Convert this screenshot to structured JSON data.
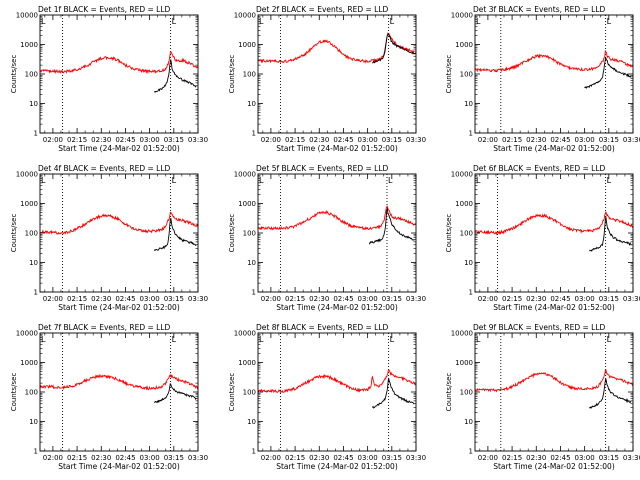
{
  "figure": {
    "x_ticks": [
      "02:00",
      "02:15",
      "02:30",
      "02:45",
      "03:00",
      "03:15",
      "03:30"
    ],
    "y_ticks": [
      "1",
      "10",
      "100",
      "1000",
      "10000"
    ],
    "xlabel": "Start Time (24-Mar-02 01:52:00)",
    "ylabel": "Counts/sec",
    "marker_letter": "L"
  },
  "colors": {
    "events": "#000000",
    "lld": "#ff0000",
    "axes": "#000000"
  },
  "chart_data": [
    {
      "type": "line",
      "title": "Det 1f BLACK = Events, RED = LLD",
      "xlabel": "Start Time (24-Mar-02 01:52:00)",
      "ylabel": "Counts/sec",
      "y_scale": "log",
      "ylim": [
        1,
        10000
      ],
      "xlim": [
        "01:52",
        "03:30"
      ],
      "dotted_time_markers": [
        "02:06",
        "03:13"
      ],
      "series": [
        {
          "x": [
            "01:52",
            "02:00",
            "02:05",
            "02:10",
            "02:15",
            "02:20",
            "02:25",
            "02:30",
            "02:35",
            "02:40",
            "02:45",
            "02:50",
            "02:55",
            "03:00",
            "03:05",
            "03:08",
            "03:10",
            "03:12",
            "03:13",
            "03:14",
            "03:16",
            "03:18",
            "03:21",
            "03:24",
            "03:27",
            "03:30"
          ],
          "y": [
            130,
            125,
            120,
            125,
            140,
            180,
            250,
            340,
            370,
            300,
            200,
            150,
            130,
            120,
            125,
            130,
            150,
            250,
            620,
            430,
            300,
            290,
            280,
            240,
            200,
            160
          ]
        },
        {
          "x": [
            "03:03",
            "03:05",
            "03:07",
            "03:09",
            "03:11",
            "03:12",
            "03:13",
            "03:14",
            "03:16",
            "03:18",
            "03:21",
            "03:24",
            "03:27",
            "03:29"
          ],
          "y": [
            25,
            27,
            30,
            36,
            55,
            110,
            350,
            140,
            95,
            75,
            60,
            52,
            45,
            38
          ]
        }
      ]
    },
    {
      "type": "line",
      "title": "Det 2f BLACK = Events, RED = LLD",
      "xlabel": "Start Time (24-Mar-02 01:52:00)",
      "ylabel": "Counts/sec",
      "y_scale": "log",
      "ylim": [
        1,
        10000
      ],
      "xlim": [
        "01:52",
        "03:30"
      ],
      "dotted_time_markers": [
        "02:06",
        "03:13"
      ],
      "series": [
        {
          "x": [
            "01:52",
            "02:00",
            "02:05",
            "02:10",
            "02:15",
            "02:20",
            "02:25",
            "02:30",
            "02:35",
            "02:40",
            "02:45",
            "02:50",
            "02:55",
            "03:00",
            "03:05",
            "03:08",
            "03:10",
            "03:11",
            "03:12",
            "03:13",
            "03:15",
            "03:18",
            "03:21",
            "03:24",
            "03:27",
            "03:30"
          ],
          "y": [
            280,
            280,
            270,
            275,
            320,
            420,
            700,
            1200,
            1300,
            800,
            450,
            320,
            280,
            270,
            290,
            320,
            450,
            900,
            2000,
            2500,
            1500,
            1000,
            800,
            700,
            600,
            480
          ]
        },
        {
          "x": [
            "03:03",
            "03:05",
            "03:07",
            "03:09",
            "03:10",
            "03:11",
            "03:12",
            "03:13",
            "03:15",
            "03:18",
            "03:21",
            "03:24",
            "03:27",
            "03:29"
          ],
          "y": [
            250,
            260,
            280,
            330,
            400,
            700,
            1800,
            2200,
            1200,
            900,
            750,
            650,
            550,
            500
          ]
        }
      ]
    },
    {
      "type": "line",
      "title": "Det 3f BLACK = Events, RED = LLD",
      "xlabel": "Start Time (24-Mar-02 01:52:00)",
      "ylabel": "Counts/sec",
      "y_scale": "log",
      "ylim": [
        1,
        10000
      ],
      "xlim": [
        "01:52",
        "03:30"
      ],
      "dotted_time_markers": [
        "02:08",
        "03:13"
      ],
      "series": [
        {
          "x": [
            "01:52",
            "02:00",
            "02:05",
            "02:10",
            "02:15",
            "02:20",
            "02:25",
            "02:30",
            "02:35",
            "02:40",
            "02:45",
            "02:50",
            "02:55",
            "03:00",
            "03:05",
            "03:08",
            "03:10",
            "03:12",
            "03:13",
            "03:14",
            "03:16",
            "03:18",
            "03:21",
            "03:24",
            "03:27",
            "03:30"
          ],
          "y": [
            140,
            135,
            130,
            140,
            160,
            210,
            300,
            400,
            420,
            320,
            210,
            160,
            145,
            140,
            150,
            170,
            220,
            320,
            600,
            420,
            320,
            300,
            280,
            250,
            200,
            170
          ]
        },
        {
          "x": [
            "03:00",
            "03:02",
            "03:04",
            "03:06",
            "03:08",
            "03:10",
            "03:11",
            "03:12",
            "03:13",
            "03:15",
            "03:18",
            "03:21",
            "03:24",
            "03:27",
            "03:29"
          ],
          "y": [
            35,
            37,
            40,
            45,
            50,
            60,
            75,
            150,
            380,
            200,
            150,
            120,
            100,
            90,
            80
          ]
        }
      ]
    },
    {
      "type": "line",
      "title": "Det 4f BLACK = Events, RED = LLD",
      "xlabel": "Start Time (24-Mar-02 01:52:00)",
      "ylabel": "Counts/sec",
      "y_scale": "log",
      "ylim": [
        1,
        10000
      ],
      "xlim": [
        "01:52",
        "03:30"
      ],
      "dotted_time_markers": [
        "02:06",
        "03:13"
      ],
      "series": [
        {
          "x": [
            "01:52",
            "02:00",
            "02:05",
            "02:10",
            "02:15",
            "02:20",
            "02:25",
            "02:30",
            "02:35",
            "02:40",
            "02:45",
            "02:50",
            "02:55",
            "03:00",
            "03:05",
            "03:08",
            "03:10",
            "03:12",
            "03:13",
            "03:14",
            "03:16",
            "03:18",
            "03:21",
            "03:24",
            "03:27",
            "03:30"
          ],
          "y": [
            110,
            105,
            100,
            110,
            140,
            200,
            300,
            380,
            390,
            300,
            200,
            140,
            120,
            115,
            120,
            135,
            170,
            300,
            520,
            400,
            300,
            280,
            260,
            230,
            200,
            170
          ]
        },
        {
          "x": [
            "03:03",
            "03:05",
            "03:07",
            "03:09",
            "03:11",
            "03:12",
            "03:13",
            "03:14",
            "03:16",
            "03:18",
            "03:21",
            "03:24",
            "03:27",
            "03:29"
          ],
          "y": [
            25,
            27,
            30,
            33,
            40,
            80,
            380,
            160,
            90,
            70,
            55,
            50,
            45,
            40
          ]
        }
      ]
    },
    {
      "type": "line",
      "title": "Det 5f BLACK = Events, RED = LLD",
      "xlabel": "Start Time (24-Mar-02 01:52:00)",
      "ylabel": "Counts/sec",
      "y_scale": "log",
      "ylim": [
        1,
        10000
      ],
      "xlim": [
        "01:52",
        "03:30"
      ],
      "dotted_time_markers": [
        "02:06",
        "03:12"
      ],
      "series": [
        {
          "x": [
            "01:52",
            "02:00",
            "02:05",
            "02:10",
            "02:15",
            "02:20",
            "02:25",
            "02:30",
            "02:35",
            "02:40",
            "02:45",
            "02:50",
            "02:55",
            "03:00",
            "03:05",
            "03:08",
            "03:10",
            "03:11",
            "03:12",
            "03:13",
            "03:15",
            "03:18",
            "03:21",
            "03:24",
            "03:27",
            "03:30"
          ],
          "y": [
            150,
            145,
            145,
            150,
            170,
            230,
            330,
            480,
            500,
            360,
            230,
            170,
            150,
            145,
            150,
            170,
            240,
            500,
            800,
            600,
            350,
            320,
            300,
            260,
            220,
            180
          ]
        },
        {
          "x": [
            "03:01",
            "03:03",
            "03:05",
            "03:07",
            "03:09",
            "03:10",
            "03:11",
            "03:12",
            "03:13",
            "03:15",
            "03:18",
            "03:21",
            "03:24",
            "03:27",
            "03:29"
          ],
          "y": [
            45,
            48,
            52,
            55,
            65,
            80,
            150,
            700,
            420,
            200,
            120,
            90,
            75,
            65,
            55
          ]
        }
      ]
    },
    {
      "type": "line",
      "title": "Det 6f BLACK = Events, RED = LLD",
      "xlabel": "Start Time (24-Mar-02 01:52:00)",
      "ylabel": "Counts/sec",
      "y_scale": "log",
      "ylim": [
        1,
        10000
      ],
      "xlim": [
        "01:52",
        "03:30"
      ],
      "dotted_time_markers": [
        "02:06",
        "03:13"
      ],
      "series": [
        {
          "x": [
            "01:52",
            "02:00",
            "02:05",
            "02:10",
            "02:15",
            "02:20",
            "02:25",
            "02:30",
            "02:35",
            "02:40",
            "02:45",
            "02:50",
            "02:55",
            "03:00",
            "03:05",
            "03:08",
            "03:10",
            "03:12",
            "03:13",
            "03:14",
            "03:16",
            "03:18",
            "03:21",
            "03:24",
            "03:27",
            "03:30"
          ],
          "y": [
            110,
            105,
            100,
            110,
            140,
            200,
            300,
            380,
            390,
            300,
            200,
            140,
            120,
            115,
            120,
            135,
            170,
            300,
            520,
            400,
            300,
            280,
            260,
            230,
            200,
            170
          ]
        },
        {
          "x": [
            "03:03",
            "03:05",
            "03:07",
            "03:09",
            "03:11",
            "03:12",
            "03:13",
            "03:14",
            "03:16",
            "03:18",
            "03:21",
            "03:24",
            "03:27",
            "03:29"
          ],
          "y": [
            25,
            27,
            30,
            33,
            40,
            80,
            380,
            160,
            90,
            70,
            55,
            50,
            45,
            40
          ]
        }
      ]
    },
    {
      "type": "line",
      "title": "Det 7f BLACK = Events, RED = LLD",
      "xlabel": "Start Time (24-Mar-02 01:52:00)",
      "ylabel": "Counts/sec",
      "y_scale": "log",
      "ylim": [
        1,
        10000
      ],
      "xlim": [
        "01:52",
        "03:30"
      ],
      "dotted_time_markers": [
        "02:06",
        "03:13"
      ],
      "series": [
        {
          "x": [
            "01:52",
            "02:00",
            "02:05",
            "02:10",
            "02:15",
            "02:20",
            "02:25",
            "02:30",
            "02:35",
            "02:40",
            "02:45",
            "02:50",
            "02:55",
            "03:00",
            "03:05",
            "03:08",
            "03:10",
            "03:12",
            "03:13",
            "03:14",
            "03:16",
            "03:18",
            "03:21",
            "03:24",
            "03:27",
            "03:30"
          ],
          "y": [
            150,
            150,
            140,
            150,
            180,
            240,
            310,
            350,
            330,
            270,
            200,
            160,
            140,
            130,
            140,
            160,
            200,
            300,
            380,
            330,
            280,
            260,
            230,
            200,
            170,
            140
          ]
        },
        {
          "x": [
            "03:03",
            "03:05",
            "03:07",
            "03:09",
            "03:11",
            "03:12",
            "03:13",
            "03:14",
            "03:16",
            "03:18",
            "03:21",
            "03:24",
            "03:27",
            "03:29"
          ],
          "y": [
            45,
            48,
            52,
            60,
            75,
            110,
            200,
            140,
            110,
            95,
            85,
            75,
            70,
            60
          ]
        }
      ]
    },
    {
      "type": "line",
      "title": "Det 8f BLACK = Events, RED = LLD",
      "xlabel": "Start Time (24-Mar-02 01:52:00)",
      "ylabel": "Counts/sec",
      "y_scale": "log",
      "ylim": [
        1,
        10000
      ],
      "xlim": [
        "01:52",
        "03:30"
      ],
      "dotted_time_markers": [
        "02:06",
        "03:13"
      ],
      "series": [
        {
          "x": [
            "01:52",
            "02:00",
            "02:05",
            "02:10",
            "02:15",
            "02:20",
            "02:25",
            "02:30",
            "02:35",
            "02:40",
            "02:45",
            "02:50",
            "02:55",
            "03:00",
            "03:02",
            "03:03",
            "03:04",
            "03:06",
            "03:08",
            "03:10",
            "03:12",
            "03:13",
            "03:15",
            "03:18",
            "03:21",
            "03:24",
            "03:27",
            "03:30"
          ],
          "y": [
            110,
            110,
            105,
            110,
            130,
            180,
            260,
            340,
            340,
            260,
            180,
            130,
            115,
            120,
            160,
            350,
            180,
            150,
            170,
            220,
            380,
            550,
            380,
            320,
            300,
            260,
            220,
            180
          ]
        },
        {
          "x": [
            "03:03",
            "03:05",
            "03:07",
            "03:09",
            "03:11",
            "03:12",
            "03:13",
            "03:14",
            "03:16",
            "03:18",
            "03:21",
            "03:24",
            "03:27",
            "03:29"
          ],
          "y": [
            30,
            32,
            38,
            45,
            60,
            110,
            300,
            180,
            100,
            75,
            60,
            50,
            45,
            40
          ]
        }
      ]
    },
    {
      "type": "line",
      "title": "Det 9f BLACK = Events, RED = LLD",
      "xlabel": "Start Time (24-Mar-02 01:52:00)",
      "ylabel": "Counts/sec",
      "y_scale": "log",
      "ylim": [
        1,
        10000
      ],
      "xlim": [
        "01:52",
        "03:30"
      ],
      "dotted_time_markers": [
        "02:08",
        "03:13"
      ],
      "series": [
        {
          "x": [
            "01:52",
            "02:00",
            "02:05",
            "02:10",
            "02:15",
            "02:20",
            "02:25",
            "02:30",
            "02:35",
            "02:40",
            "02:45",
            "02:50",
            "02:55",
            "03:00",
            "03:05",
            "03:08",
            "03:10",
            "03:12",
            "03:13",
            "03:14",
            "03:16",
            "03:18",
            "03:21",
            "03:24",
            "03:27",
            "03:30"
          ],
          "y": [
            120,
            115,
            115,
            120,
            150,
            210,
            310,
            400,
            420,
            320,
            210,
            150,
            130,
            125,
            135,
            150,
            200,
            320,
            560,
            420,
            320,
            300,
            280,
            240,
            200,
            170
          ]
        },
        {
          "x": [
            "03:03",
            "03:05",
            "03:07",
            "03:09",
            "03:11",
            "03:12",
            "03:13",
            "03:14",
            "03:16",
            "03:18",
            "03:21",
            "03:24",
            "03:27",
            "03:29"
          ],
          "y": [
            30,
            32,
            36,
            42,
            55,
            100,
            300,
            160,
            100,
            80,
            65,
            55,
            50,
            45
          ]
        }
      ]
    }
  ]
}
